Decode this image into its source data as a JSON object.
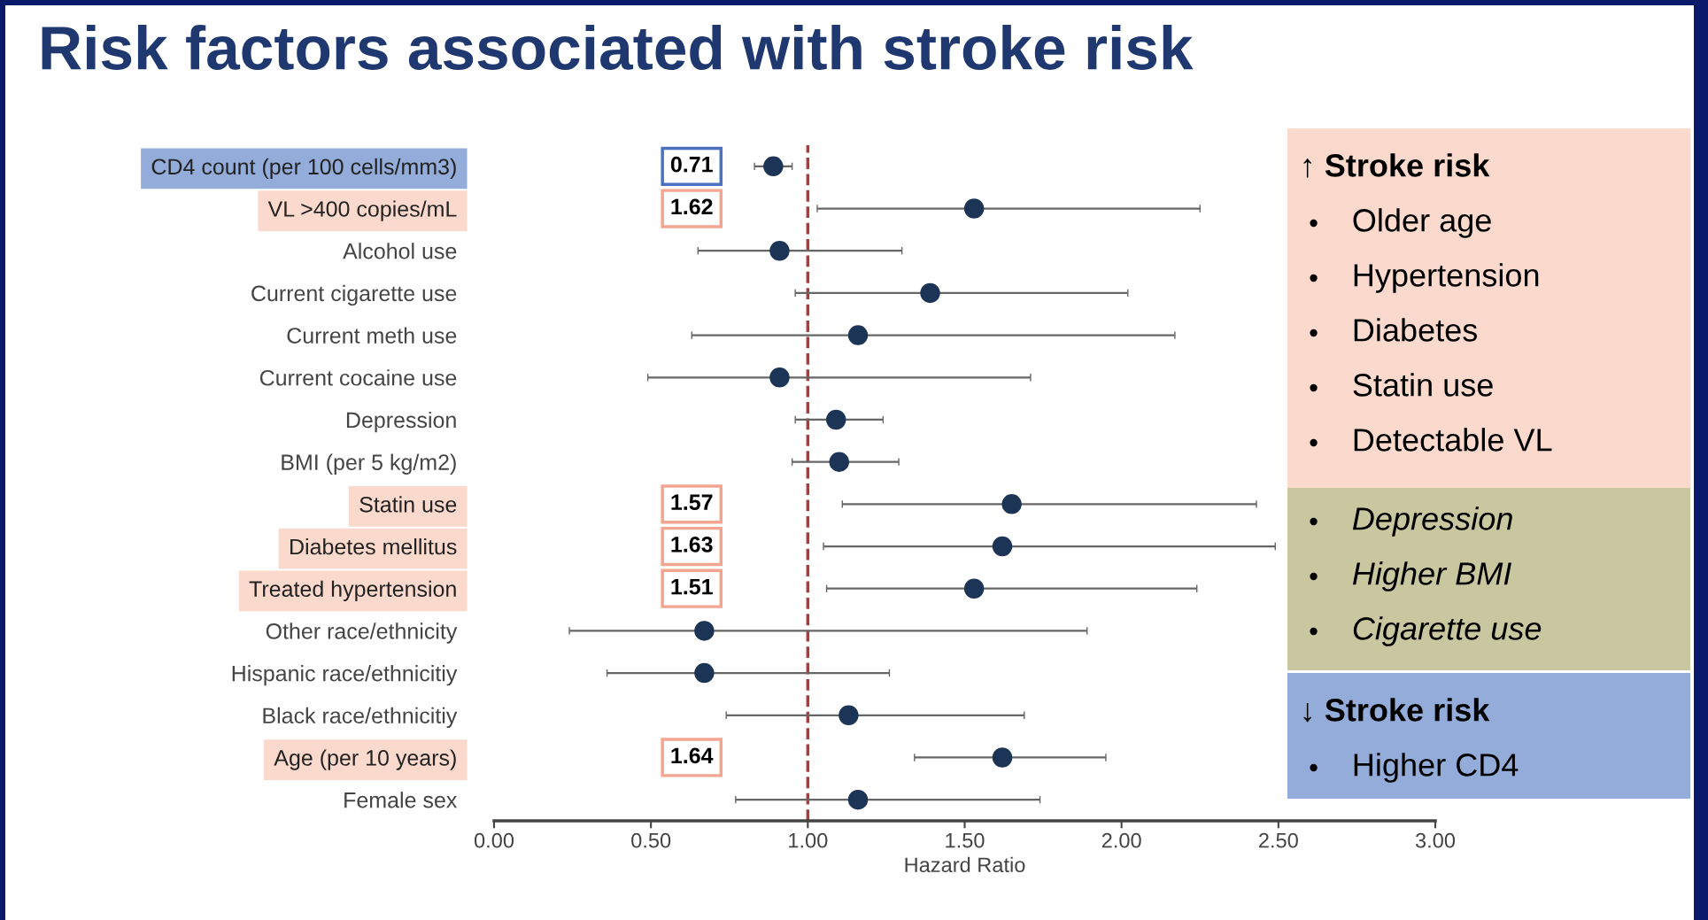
{
  "chart_data": [
    {
      "type": "scatter",
      "orientation": "horizontal",
      "title": "Risk factors associated with stroke risk",
      "xlabel": "Hazard Ratio",
      "categories": [
        "CD4 count (per 100 cells/mm3)",
        "VL >400 copies/mL",
        "Alcohol use",
        "Current cigarette use",
        "Current meth use",
        "Current cocaine use",
        "Depression",
        "BMI (per 5 kg/m2)",
        "Statin use",
        "Diabetes mellitus",
        "Treated hypertension",
        "Other race/ethnicity",
        "Hispanic race/ethnicitiy",
        "Black race/ethnicitiy",
        "Age (per 10 years)",
        "Female sex"
      ],
      "series": [
        {
          "color": "#1c3557",
          "values": [
            0.89,
            1.53,
            0.91,
            1.39,
            1.16,
            0.91,
            1.09,
            1.1,
            1.65,
            1.62,
            1.53,
            0.67,
            0.67,
            1.13,
            1.62,
            1.16
          ],
          "errors": [
            [
              0.83,
              0.95
            ],
            [
              1.03,
              2.25
            ],
            [
              0.65,
              1.3
            ],
            [
              0.96,
              2.02
            ],
            [
              0.63,
              2.17
            ],
            [
              0.49,
              1.71
            ],
            [
              0.96,
              1.24
            ],
            [
              0.95,
              1.29
            ],
            [
              1.11,
              2.43
            ],
            [
              1.05,
              2.49
            ],
            [
              1.06,
              2.24
            ],
            [
              0.24,
              1.89
            ],
            [
              0.36,
              1.26
            ],
            [
              0.74,
              1.69
            ],
            [
              1.34,
              1.95
            ],
            [
              0.77,
              1.74
            ]
          ]
        }
      ],
      "xlim": [
        0,
        3
      ],
      "xticks": [
        {
          "value": 0,
          "label": "0.00"
        },
        {
          "value": 0.5,
          "label": "0.50"
        },
        {
          "value": 1,
          "label": "1.00"
        },
        {
          "value": 1.5,
          "label": "1.50"
        },
        {
          "value": 2,
          "label": "2.00"
        },
        {
          "value": 2.5,
          "label": "2.50"
        },
        {
          "value": 3,
          "label": "3.00"
        }
      ],
      "ref_lines": [
        {
          "axis": "x",
          "value": 1,
          "color": "#b03a3a",
          "line_style": "dashed"
        }
      ],
      "marker": "circle",
      "annotations": [
        "0.71",
        "1.62",
        "1.57",
        "1.63",
        "1.51",
        "1.64"
      ]
    },
    {
      "type": "other",
      "title": "↑ Stroke risk",
      "annotations": [
        "Older age",
        "Hypertension",
        "Diabetes",
        "Statin use",
        "Detectable VL"
      ]
    },
    {
      "type": "other",
      "annotations": [
        "Depression",
        "Higher BMI",
        "Cigarette use"
      ]
    },
    {
      "type": "other",
      "title": "↓ Stroke risk",
      "annotations": [
        "Higher CD4"
      ]
    }
  ]
}
